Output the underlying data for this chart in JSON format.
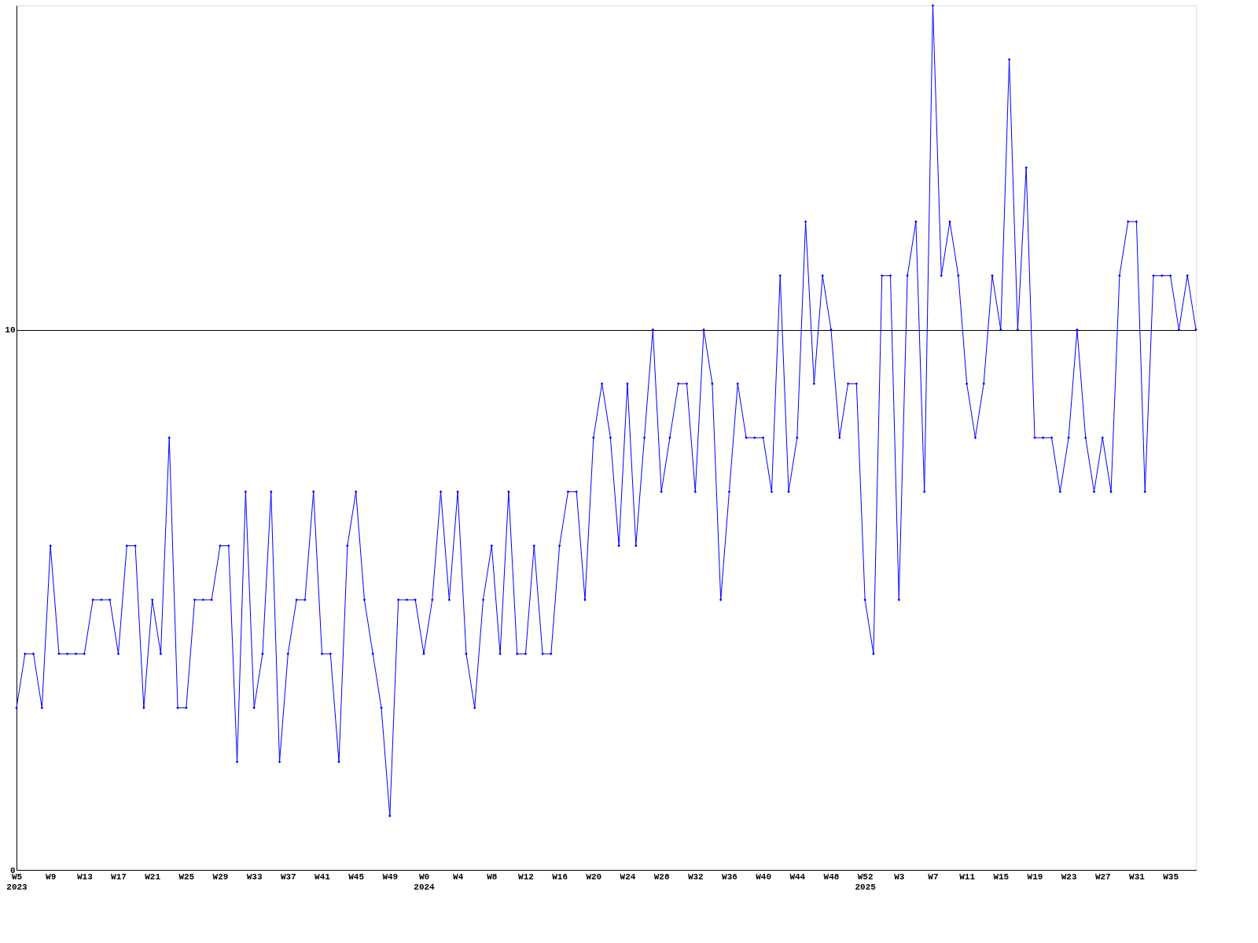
{
  "chart_data": {
    "type": "line",
    "categories": [
      "W5\n2023",
      null,
      null,
      null,
      "W9",
      null,
      null,
      null,
      "W13",
      null,
      null,
      null,
      "W17",
      null,
      null,
      null,
      "W21",
      null,
      null,
      null,
      "W25",
      null,
      null,
      null,
      "W29",
      null,
      null,
      null,
      "W33",
      null,
      null,
      null,
      "W37",
      null,
      null,
      null,
      "W41",
      null,
      null,
      null,
      "W45",
      null,
      null,
      null,
      "W49",
      null,
      null,
      null,
      "W0\n2024",
      null,
      null,
      null,
      "W4",
      null,
      null,
      null,
      "W8",
      null,
      null,
      null,
      "W12",
      null,
      null,
      null,
      "W16",
      null,
      null,
      null,
      "W20",
      null,
      null,
      null,
      "W24",
      null,
      null,
      null,
      "W28",
      null,
      null,
      null,
      "W32",
      null,
      null,
      null,
      "W36",
      null,
      null,
      null,
      "W40",
      null,
      null,
      null,
      "W44",
      null,
      null,
      null,
      "W48",
      null,
      null,
      null,
      "W52\n2025",
      null,
      null,
      null,
      "W3",
      null,
      null,
      null,
      "W7",
      null,
      null,
      null,
      "W11",
      null,
      null,
      null,
      "W15",
      null,
      null,
      null,
      "W19",
      null,
      null,
      null,
      "W23",
      null,
      null,
      null,
      "W27",
      null,
      null,
      null,
      "W31",
      null,
      null,
      null,
      "W35",
      null,
      null,
      null
    ],
    "series": [
      {
        "color": "#0000ff",
        "values": [
          3,
          4,
          4,
          3,
          6,
          4,
          4,
          4,
          4,
          5,
          5,
          5,
          4,
          6,
          6,
          3,
          5,
          4,
          8,
          3,
          3,
          5,
          5,
          5,
          6,
          6,
          2,
          7,
          3,
          4,
          7,
          2,
          4,
          5,
          5,
          7,
          4,
          4,
          2,
          6,
          7,
          5,
          4,
          3,
          1,
          5,
          5,
          5,
          4,
          5,
          7,
          5,
          7,
          4,
          3,
          5,
          6,
          4,
          7,
          4,
          4,
          6,
          4,
          4,
          6,
          7,
          7,
          5,
          8,
          9,
          8,
          6,
          9,
          6,
          8,
          10,
          7,
          8,
          9,
          9,
          7,
          10,
          9,
          5,
          7,
          9,
          8,
          8,
          8,
          7,
          11,
          7,
          8,
          12,
          9,
          11,
          10,
          8,
          9,
          9,
          5,
          4,
          11,
          11,
          5,
          11,
          12,
          7,
          16,
          11,
          12,
          11,
          9,
          8,
          9,
          11,
          10,
          15,
          10,
          13,
          8,
          8,
          8,
          7,
          8,
          10,
          8,
          7,
          8,
          7,
          11,
          12,
          12,
          7,
          11,
          11,
          11,
          10,
          11,
          10
        ]
      }
    ],
    "ylim": [
      0,
      16
    ],
    "yticks": [
      0,
      10
    ],
    "grid": "y",
    "marker": "diamond",
    "line_style": "solid"
  }
}
